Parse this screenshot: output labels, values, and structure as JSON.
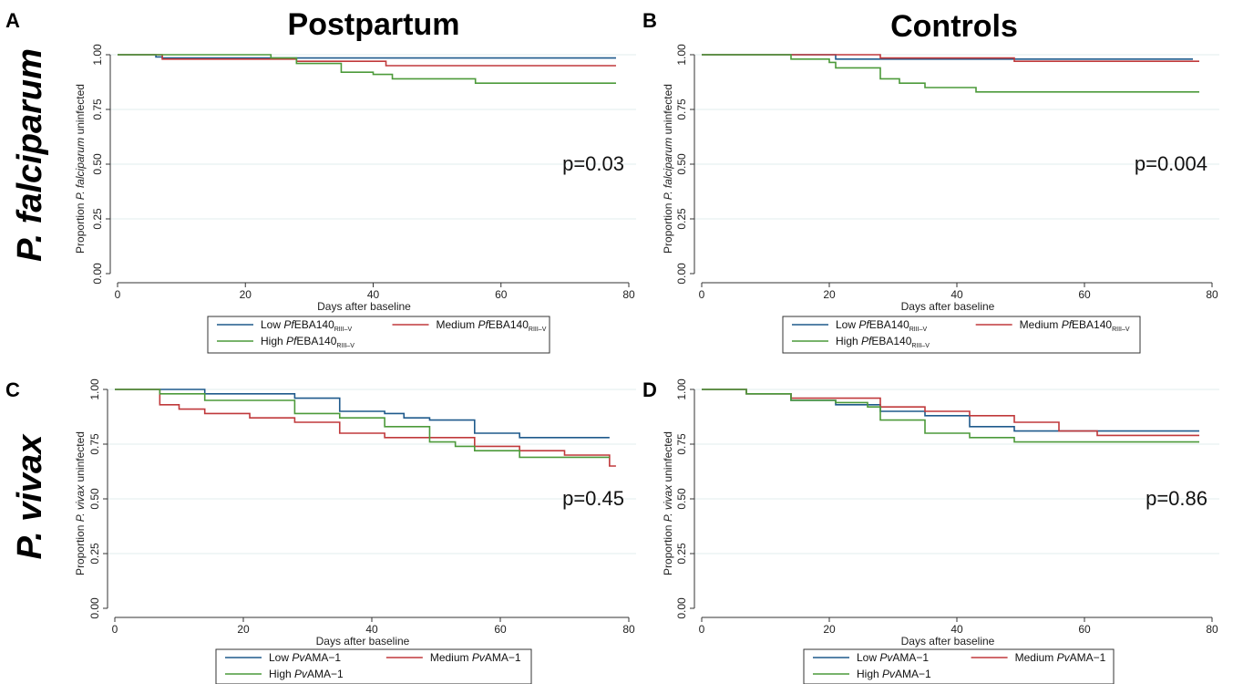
{
  "figure": {
    "col_titles": [
      "Postpartum",
      "Controls"
    ],
    "row_titles": [
      "P. falciparum",
      "P. vivax"
    ]
  },
  "chart_data": [
    {
      "panel": "A",
      "type": "line",
      "step": true,
      "xlabel": "Days after baseline",
      "ylabel_parts": [
        {
          "text": "Proportion ",
          "italic": false
        },
        {
          "text": "P. falciparum",
          "italic": true
        },
        {
          "text": " uninfected",
          "italic": false
        }
      ],
      "xlim": [
        0,
        80
      ],
      "ylim": [
        0,
        1
      ],
      "xticks": [
        0,
        20,
        40,
        60,
        80
      ],
      "yticks": [
        0,
        0.25,
        0.5,
        0.75,
        1
      ],
      "ytick_labels": [
        "0.00",
        "0.25",
        "0.50",
        "0.75",
        "1.00"
      ],
      "grid": true,
      "annotation": "p=0.03",
      "legend": {
        "placement": "below",
        "entries": [
          {
            "prefix": "Low ",
            "antigen": "Pf",
            "name": "EBA140",
            "sub": "RIII–V",
            "color": "#1f5a8c"
          },
          {
            "prefix": "Medium ",
            "antigen": "Pf",
            "name": "EBA140",
            "sub": "RIII–V",
            "color": "#c0393b"
          },
          {
            "prefix": "High ",
            "antigen": "Pf",
            "name": "EBA140",
            "sub": "RIII–V",
            "color": "#4c9a3a"
          }
        ]
      },
      "series": [
        {
          "color": "#1f5a8c",
          "x": [
            0,
            6,
            7,
            78
          ],
          "y": [
            1.0,
            0.99,
            0.985,
            0.985
          ]
        },
        {
          "color": "#c0393b",
          "x": [
            0,
            7,
            28,
            42,
            78
          ],
          "y": [
            1.0,
            0.98,
            0.97,
            0.95,
            0.95
          ]
        },
        {
          "color": "#4c9a3a",
          "x": [
            0,
            24,
            28,
            35,
            40,
            43,
            56,
            78
          ],
          "y": [
            1.0,
            0.985,
            0.96,
            0.92,
            0.91,
            0.89,
            0.87,
            0.87
          ]
        }
      ]
    },
    {
      "panel": "B",
      "type": "line",
      "step": true,
      "xlabel": "Days after baseline",
      "ylabel_parts": [
        {
          "text": "Proportion ",
          "italic": false
        },
        {
          "text": "P. falciparum",
          "italic": true
        },
        {
          "text": " uninfected",
          "italic": false
        }
      ],
      "xlim": [
        0,
        80
      ],
      "ylim": [
        0,
        1
      ],
      "xticks": [
        0,
        20,
        40,
        60,
        80
      ],
      "yticks": [
        0,
        0.25,
        0.5,
        0.75,
        1
      ],
      "ytick_labels": [
        "0.00",
        "0.25",
        "0.50",
        "0.75",
        "1.00"
      ],
      "grid": true,
      "annotation": "p=0.004",
      "legend": {
        "placement": "below",
        "entries": [
          {
            "prefix": "Low ",
            "antigen": "Pf",
            "name": "EBA140",
            "sub": "RIII–V",
            "color": "#1f5a8c"
          },
          {
            "prefix": "Medium ",
            "antigen": "Pf",
            "name": "EBA140",
            "sub": "RIII–V",
            "color": "#c0393b"
          },
          {
            "prefix": "High ",
            "antigen": "Pf",
            "name": "EBA140",
            "sub": "RIII–V",
            "color": "#4c9a3a"
          }
        ]
      },
      "series": [
        {
          "color": "#1f5a8c",
          "x": [
            0,
            21,
            77
          ],
          "y": [
            1.0,
            0.98,
            0.98
          ]
        },
        {
          "color": "#c0393b",
          "x": [
            0,
            28,
            49,
            78
          ],
          "y": [
            1.0,
            0.985,
            0.97,
            0.97
          ]
        },
        {
          "color": "#4c9a3a",
          "x": [
            0,
            14,
            20,
            21,
            28,
            31,
            35,
            43,
            78
          ],
          "y": [
            1.0,
            0.98,
            0.965,
            0.94,
            0.89,
            0.87,
            0.85,
            0.83,
            0.83
          ]
        }
      ]
    },
    {
      "panel": "C",
      "type": "line",
      "step": true,
      "xlabel": "Days after baseline",
      "ylabel_parts": [
        {
          "text": "Proportion ",
          "italic": false
        },
        {
          "text": "P. vivax",
          "italic": true
        },
        {
          "text": " uninfected",
          "italic": false
        }
      ],
      "xlim": [
        0,
        80
      ],
      "ylim": [
        0,
        1
      ],
      "xticks": [
        0,
        20,
        40,
        60,
        80
      ],
      "yticks": [
        0,
        0.25,
        0.5,
        0.75,
        1
      ],
      "ytick_labels": [
        "0.00",
        "0.25",
        "0.50",
        "0.75",
        "1.00"
      ],
      "grid": true,
      "annotation": "p=0.45",
      "legend": {
        "placement": "below",
        "entries": [
          {
            "prefix": "Low  ",
            "antigen": "Pv",
            "name": "AMA−1",
            "sub": "",
            "color": "#1f5a8c"
          },
          {
            "prefix": "Medium  ",
            "antigen": "Pv",
            "name": "AMA−1",
            "sub": "",
            "color": "#c0393b"
          },
          {
            "prefix": "High  ",
            "antigen": "Pv",
            "name": "AMA−1",
            "sub": "",
            "color": "#4c9a3a"
          }
        ]
      },
      "series": [
        {
          "color": "#1f5a8c",
          "x": [
            0,
            14,
            28,
            35,
            42,
            45,
            49,
            56,
            63,
            77
          ],
          "y": [
            1.0,
            0.98,
            0.96,
            0.9,
            0.89,
            0.87,
            0.86,
            0.8,
            0.78,
            0.78
          ]
        },
        {
          "color": "#c0393b",
          "x": [
            0,
            7,
            10,
            14,
            21,
            28,
            35,
            42,
            49,
            56,
            63,
            70,
            77,
            78
          ],
          "y": [
            1.0,
            0.93,
            0.91,
            0.89,
            0.87,
            0.85,
            0.8,
            0.78,
            0.78,
            0.74,
            0.72,
            0.7,
            0.65,
            0.65
          ]
        },
        {
          "color": "#4c9a3a",
          "x": [
            0,
            7,
            14,
            28,
            35,
            42,
            49,
            53,
            56,
            63,
            77
          ],
          "y": [
            1.0,
            0.98,
            0.95,
            0.89,
            0.87,
            0.83,
            0.76,
            0.74,
            0.72,
            0.69,
            0.69
          ]
        }
      ]
    },
    {
      "panel": "D",
      "type": "line",
      "step": true,
      "xlabel": "Days after baseline",
      "ylabel_parts": [
        {
          "text": "Proportion ",
          "italic": false
        },
        {
          "text": "P. vivax",
          "italic": true
        },
        {
          "text": " uninfected",
          "italic": false
        }
      ],
      "xlim": [
        0,
        80
      ],
      "ylim": [
        0,
        1
      ],
      "xticks": [
        0,
        20,
        40,
        60,
        80
      ],
      "yticks": [
        0,
        0.25,
        0.5,
        0.75,
        1
      ],
      "ytick_labels": [
        "0.00",
        "0.25",
        "0.50",
        "0.75",
        "1.00"
      ],
      "grid": true,
      "annotation": "p=0.86",
      "legend": {
        "placement": "below",
        "entries": [
          {
            "prefix": "Low  ",
            "antigen": "Pv",
            "name": "AMA−1",
            "sub": "",
            "color": "#1f5a8c"
          },
          {
            "prefix": "Medium  ",
            "antigen": "Pv",
            "name": "AMA−1",
            "sub": "",
            "color": "#c0393b"
          },
          {
            "prefix": "High  ",
            "antigen": "Pv",
            "name": "AMA−1",
            "sub": "",
            "color": "#4c9a3a"
          }
        ]
      },
      "series": [
        {
          "color": "#1f5a8c",
          "x": [
            0,
            7,
            14,
            21,
            28,
            35,
            42,
            49,
            78
          ],
          "y": [
            1.0,
            0.98,
            0.95,
            0.93,
            0.9,
            0.88,
            0.83,
            0.81,
            0.81
          ]
        },
        {
          "color": "#c0393b",
          "x": [
            0,
            7,
            14,
            28,
            35,
            42,
            49,
            56,
            62,
            78
          ],
          "y": [
            1.0,
            0.98,
            0.96,
            0.92,
            0.9,
            0.88,
            0.85,
            0.81,
            0.79,
            0.79
          ]
        },
        {
          "color": "#4c9a3a",
          "x": [
            0,
            7,
            14,
            21,
            26,
            28,
            35,
            42,
            49,
            78
          ],
          "y": [
            1.0,
            0.98,
            0.95,
            0.94,
            0.92,
            0.86,
            0.8,
            0.78,
            0.76,
            0.76
          ]
        }
      ]
    }
  ]
}
